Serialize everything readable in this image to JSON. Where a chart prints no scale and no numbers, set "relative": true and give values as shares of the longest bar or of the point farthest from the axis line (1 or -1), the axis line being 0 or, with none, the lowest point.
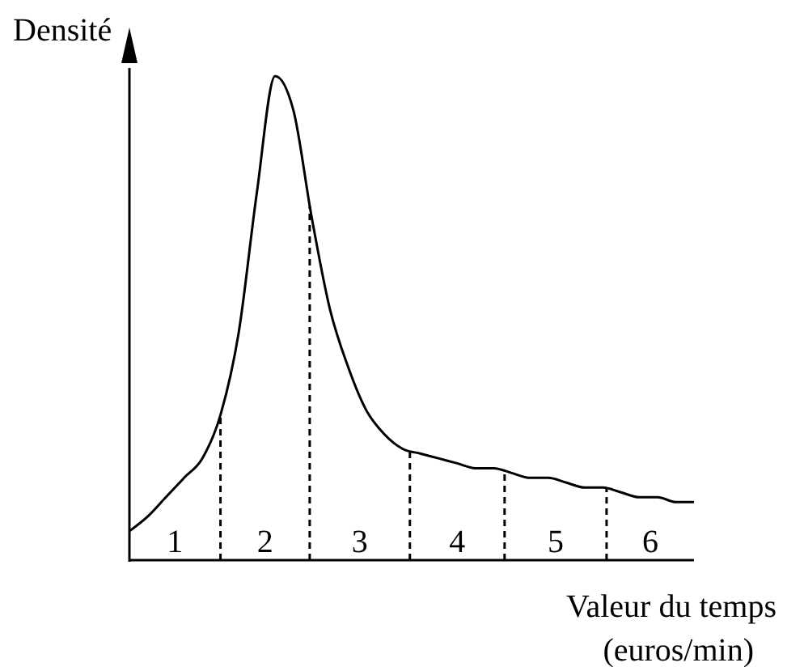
{
  "chart_data": {
    "type": "line",
    "relative": true,
    "ylabel": "Densité",
    "xlabel": "Valeur du temps\n(euros/min)",
    "color": "#000000",
    "marker": "none",
    "categories": [
      null,
      null,
      null,
      null,
      null,
      null,
      null,
      null,
      null,
      null,
      null,
      null,
      null,
      null,
      null,
      null,
      null,
      null,
      null,
      null,
      null,
      null,
      null,
      null,
      null,
      null,
      null,
      null,
      null,
      null,
      null,
      null
    ],
    "values": [
      0.06,
      0.09,
      0.13,
      0.17,
      0.21,
      0.3,
      0.47,
      0.76,
      1.0,
      0.93,
      0.71,
      0.52,
      0.4,
      0.31,
      0.26,
      0.23,
      0.22,
      0.21,
      0.2,
      0.19,
      0.19,
      0.18,
      0.17,
      0.17,
      0.16,
      0.15,
      0.15,
      0.14,
      0.13,
      0.13,
      0.12,
      0.12
    ],
    "annotations": [
      "1",
      "2",
      "3",
      "4",
      "5",
      "6"
    ]
  }
}
